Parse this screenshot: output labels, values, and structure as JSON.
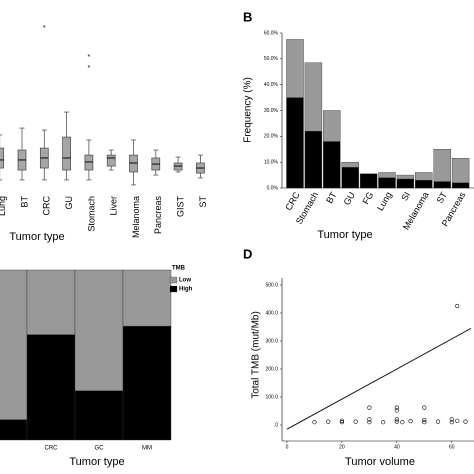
{
  "chart_data": [
    {
      "type": "box",
      "xlabel": "Tumor type",
      "color": "#a6a6a6",
      "ylim": [
        0,
        100
      ],
      "categories": [
        "Lung",
        "BT",
        "CRC",
        "GU",
        "Stomach",
        "Liver",
        "Melanoma",
        "Pancreas",
        "GIST",
        "ST"
      ],
      "boxes": [
        {
          "min": 5.6,
          "q1": 12.2,
          "median": 16.7,
          "q3": 23.3,
          "max": 30.6,
          "outliers": []
        },
        {
          "min": 5.6,
          "q1": 11.1,
          "median": 16.7,
          "q3": 22.2,
          "max": 34.4,
          "outliers": []
        },
        {
          "min": 5.6,
          "q1": 12.2,
          "median": 17.8,
          "q3": 23.3,
          "max": 33.3,
          "outliers": [
            90
          ]
        },
        {
          "min": 5.6,
          "q1": 11.1,
          "median": 17.8,
          "q3": 29.4,
          "max": 43.3,
          "outliers": []
        },
        {
          "min": 5.6,
          "q1": 11.1,
          "median": 15.6,
          "q3": 19.4,
          "max": 27.8,
          "outliers": [
            73.9,
            67.8
          ]
        },
        {
          "min": 11.1,
          "q1": 13.3,
          "median": 17.8,
          "q3": 19.4,
          "max": 22.2,
          "outliers": []
        },
        {
          "min": 2.8,
          "q1": 10,
          "median": 15,
          "q3": 19.4,
          "max": 27.8,
          "outliers": []
        },
        {
          "min": 8.3,
          "q1": 11.1,
          "median": 14.4,
          "q3": 17.8,
          "max": 22.2,
          "outliers": []
        },
        {
          "min": 10,
          "q1": 11.1,
          "median": 13.3,
          "q3": 15,
          "max": 18.3,
          "outliers": []
        },
        {
          "min": 6.7,
          "q1": 9.4,
          "median": 12.2,
          "q3": 15,
          "max": 19.4,
          "outliers": []
        }
      ]
    },
    {
      "type": "stacked_bar",
      "label": "B",
      "ylabel": "Frequency (%)",
      "xlabel": "Tumor type",
      "categories": [
        "CRC",
        "Stomach",
        "BT",
        "GU",
        "FG",
        "Lung",
        "SI",
        "Melanoma",
        "ST",
        "Pancreas"
      ],
      "series": [
        {
          "color": "#000000",
          "values": [
            35,
            22,
            18,
            8,
            5.5,
            4,
            3.5,
            3,
            2.5,
            2
          ]
        },
        {
          "color": "#999999",
          "values": [
            22.5,
            26.5,
            12,
            2,
            0,
            2,
            1.5,
            3,
            12.5,
            9.5
          ]
        }
      ],
      "ylim": [
        0,
        60
      ],
      "yticks": [
        {
          "value": 0,
          "label": "0.0%"
        },
        {
          "value": 10,
          "label": "10.0%"
        },
        {
          "value": 20,
          "label": "20.0%"
        },
        {
          "value": 30,
          "label": "30.0%"
        },
        {
          "value": 40,
          "label": "40.0%"
        },
        {
          "value": 50,
          "label": "50.0%"
        },
        {
          "value": 60,
          "label": "60.0%"
        }
      ]
    },
    {
      "type": "stacked_bar",
      "xlabel": "Tumor type",
      "legend_title": "TMB",
      "categories": [
        null,
        "CRC",
        "GC",
        "MM"
      ],
      "series": [
        {
          "name": "High",
          "color": "#000000",
          "values": [
            12,
            62,
            29,
            67
          ]
        },
        {
          "name": "Low",
          "color": "#999999",
          "values": [
            88,
            38,
            71,
            33
          ]
        }
      ],
      "ylim": [
        0,
        100
      ]
    },
    {
      "type": "scatter",
      "label": "D",
      "ylabel": "Total TMB (mut/Mb)",
      "xlabel": "Tumor volume",
      "x": [
        62,
        30,
        40,
        50,
        40,
        10,
        15,
        20,
        20,
        25,
        30,
        30,
        35,
        40,
        40,
        42,
        45,
        50,
        50,
        55,
        60,
        60,
        62,
        65
      ],
      "y": [
        425,
        62,
        62,
        62,
        52,
        10,
        12,
        10,
        15,
        12,
        10,
        20,
        10,
        12,
        20,
        10,
        14,
        10,
        18,
        12,
        10,
        20,
        15,
        12
      ],
      "fit_line": {
        "x": [
          0,
          67
        ],
        "y": [
          -15,
          345
        ]
      },
      "xlim": [
        0,
        67
      ],
      "ylim": [
        -25,
        525
      ],
      "xticks": [
        0,
        20,
        40,
        60
      ],
      "yticks": [
        {
          "value": 0,
          "label": ".0"
        },
        {
          "value": 100,
          "label": "100.0"
        },
        {
          "value": 200,
          "label": "200.0"
        },
        {
          "value": 300,
          "label": "300.0"
        },
        {
          "value": 400,
          "label": "400.0"
        },
        {
          "value": 500,
          "label": "500.0"
        }
      ]
    }
  ]
}
